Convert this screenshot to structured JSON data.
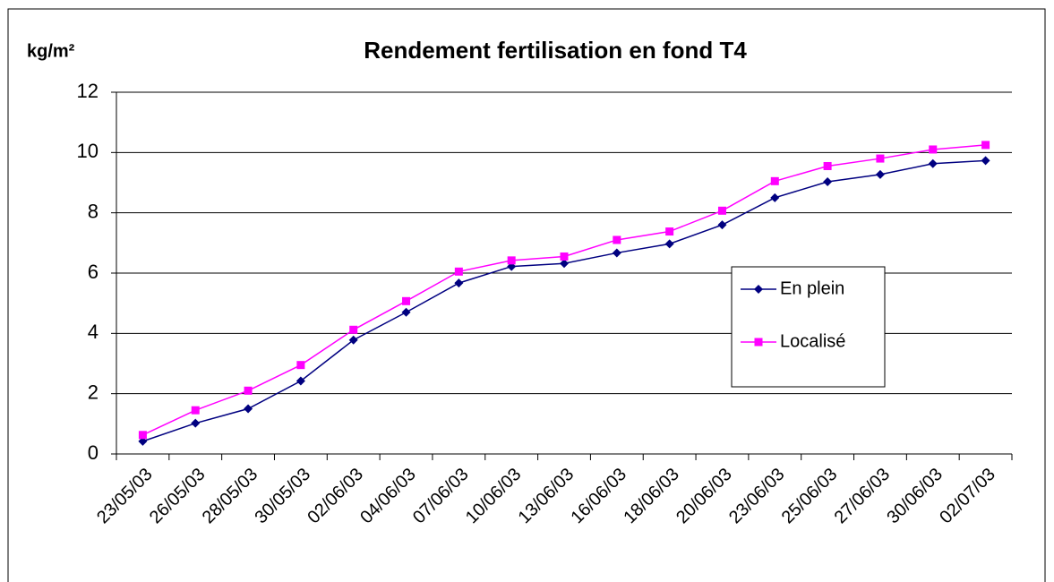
{
  "chart_data": {
    "type": "line",
    "title": "Rendement fertilisation en fond T4",
    "y_label": "kg/m²",
    "categories": [
      "23/05/03",
      "26/05/03",
      "28/05/03",
      "30/05/03",
      "02/06/03",
      "04/06/03",
      "07/06/03",
      "10/06/03",
      "13/06/03",
      "16/06/03",
      "18/06/03",
      "20/06/03",
      "23/06/03",
      "25/06/03",
      "27/06/03",
      "30/06/03",
      "02/07/03"
    ],
    "series": [
      {
        "name": "En plein",
        "color": "#000080",
        "marker": "diamond",
        "values": [
          0.42,
          1.02,
          1.5,
          2.42,
          3.78,
          4.7,
          5.67,
          6.22,
          6.32,
          6.67,
          6.97,
          7.6,
          8.5,
          9.03,
          9.27,
          9.63,
          9.73
        ]
      },
      {
        "name": "Localisé",
        "color": "#ff00ff",
        "marker": "square",
        "values": [
          0.63,
          1.45,
          2.1,
          2.95,
          4.12,
          5.07,
          6.05,
          6.42,
          6.55,
          7.1,
          7.38,
          8.07,
          9.05,
          9.55,
          9.8,
          10.1,
          10.25
        ]
      }
    ],
    "ylim": [
      0,
      12
    ],
    "yticks": [
      0,
      2,
      4,
      6,
      8,
      10,
      12
    ],
    "grid": true,
    "legend": "right"
  }
}
